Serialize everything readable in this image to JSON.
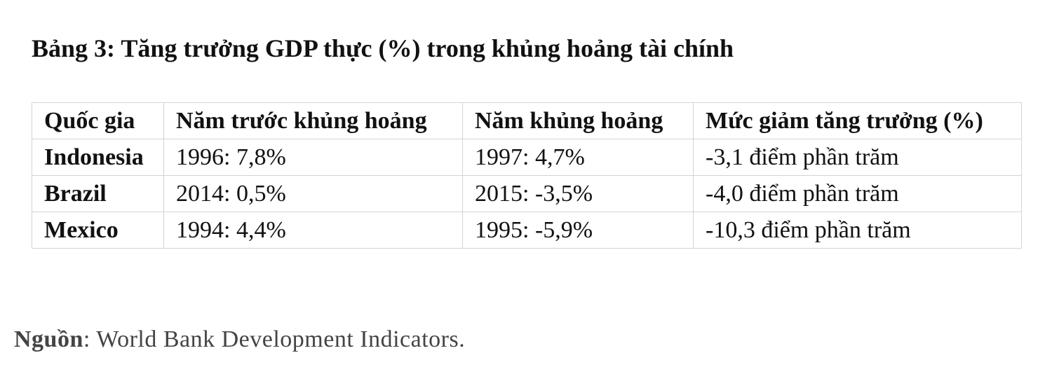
{
  "title": "Bảng 3: Tăng trưởng GDP thực (%) trong khủng hoảng tài chính",
  "table": {
    "header": [
      "Quốc gia",
      "Năm trước khủng hoảng",
      "Năm khủng hoảng",
      "Mức giảm tăng trưởng (%)"
    ],
    "rows": [
      [
        "Indonesia",
        "1996: 7,8%",
        "1997: 4,7%",
        "-3,1 điểm phần trăm"
      ],
      [
        "Brazil",
        "2014: 0,5%",
        "2015: -3,5%",
        "-4,0 điểm phần trăm"
      ],
      [
        "Mexico",
        "1994: 4,4%",
        "1995: -5,9%",
        "-10,3 điểm phần trăm"
      ]
    ]
  },
  "source": {
    "label": "Nguồn",
    "text": ": World Bank Development Indicators."
  }
}
